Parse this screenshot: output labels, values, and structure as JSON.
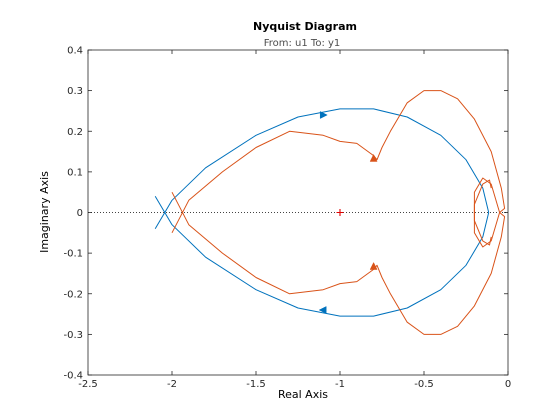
{
  "chart_data": {
    "type": "line",
    "title": "Nyquist Diagram",
    "subtitle": "From: u1  To: y1",
    "xlabel": "Real Axis",
    "ylabel": "Imaginary Axis",
    "xlim": [
      -2.5,
      0
    ],
    "ylim": [
      -0.4,
      0.4
    ],
    "xticks": [
      -2.5,
      -2,
      -1.5,
      -1,
      -0.5,
      0
    ],
    "xtick_labels": [
      "-2.5",
      "-2",
      "-1.5",
      "-1",
      "-0.5",
      "0"
    ],
    "yticks": [
      -0.4,
      -0.3,
      -0.2,
      -0.1,
      0,
      0.1,
      0.2,
      0.3,
      0.4
    ],
    "ytick_labels": [
      "-0.4",
      "-0.3",
      "-0.2",
      "-0.1",
      "0",
      "0.1",
      "0.2",
      "0.3",
      "0.4"
    ],
    "grid": false,
    "critical_point": {
      "x": -1,
      "y": 0,
      "color": "#e00000"
    },
    "zero_line_color": "#444444",
    "series": [
      {
        "color": "#0072bd",
        "x": [
          -2.1,
          -2.0,
          -1.8,
          -1.5,
          -1.25,
          -1.0,
          -0.8,
          -0.6,
          -0.4,
          -0.25,
          -0.15,
          -0.115
        ],
        "y": [
          -0.04,
          0.03,
          0.11,
          0.19,
          0.235,
          0.255,
          0.255,
          0.235,
          0.19,
          0.13,
          0.06,
          0.0
        ],
        "arrows": [
          {
            "x": -1.1,
            "y": 0.24,
            "dir": "forward"
          },
          {
            "x": -1.1,
            "y": -0.24,
            "dir": "backward"
          }
        ]
      },
      {
        "color": "#d95319",
        "x": [
          -2.0,
          -1.9,
          -1.7,
          -1.5,
          -1.3,
          -1.1,
          -1.0,
          -0.9,
          -0.8,
          -0.78,
          -0.75,
          -0.7,
          -0.6,
          -0.5,
          -0.4,
          -0.3,
          -0.2,
          -0.1,
          -0.04,
          -0.02,
          -0.05,
          -0.1,
          -0.15,
          -0.2,
          -0.2,
          -0.15,
          -0.11,
          -0.1
        ],
        "y": [
          -0.05,
          0.03,
          0.1,
          0.16,
          0.2,
          0.19,
          0.175,
          0.17,
          0.14,
          0.13,
          0.16,
          0.2,
          0.27,
          0.3,
          0.3,
          0.28,
          0.23,
          0.15,
          0.06,
          0.01,
          0.0,
          0.07,
          0.085,
          0.05,
          -0.02,
          -0.07,
          -0.08,
          -0.06
        ],
        "arrows": [
          {
            "x": -0.8,
            "y": 0.133,
            "dir": "up"
          },
          {
            "x": -0.8,
            "y": -0.133,
            "dir": "up"
          }
        ]
      }
    ]
  }
}
